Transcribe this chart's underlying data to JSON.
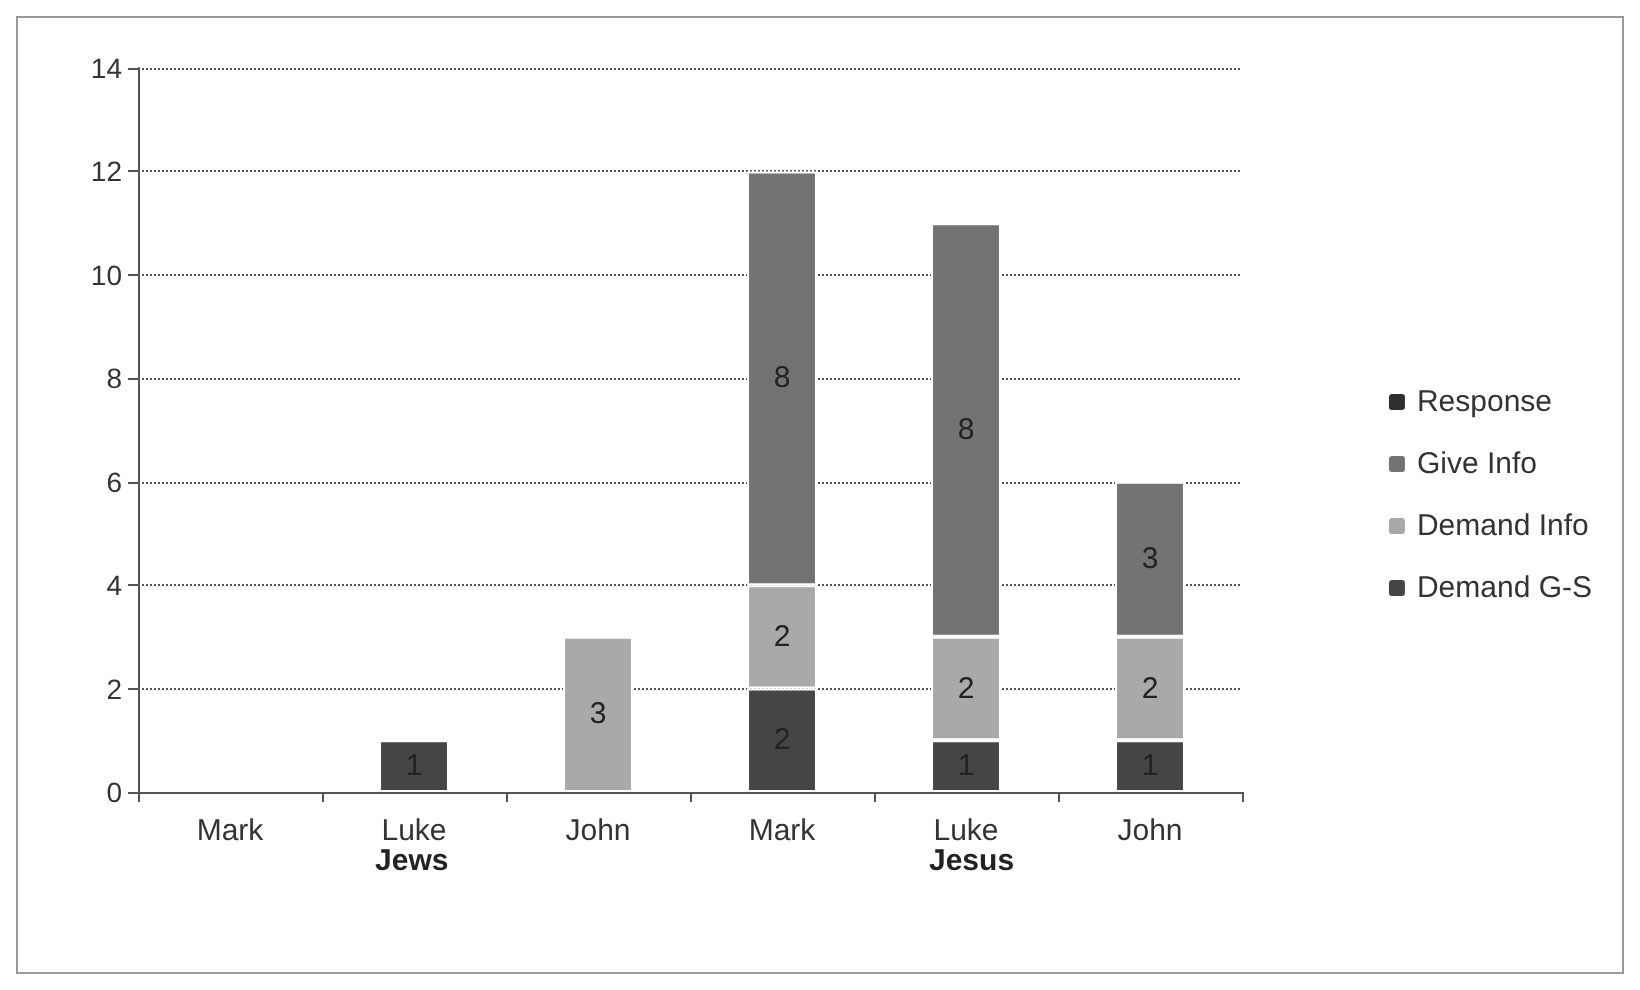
{
  "chart_data": {
    "type": "bar",
    "stacked": true,
    "categories": [
      "Mark",
      "Luke",
      "John",
      "Mark",
      "Luke",
      "John"
    ],
    "series": [
      {
        "name": "Demand G-S",
        "color": "#454545",
        "values": [
          null,
          1,
          null,
          2,
          1,
          1
        ]
      },
      {
        "name": "Demand Info",
        "color": "#a9a9a9",
        "values": [
          null,
          null,
          3,
          2,
          2,
          2
        ]
      },
      {
        "name": "Give Info",
        "color": "#737373",
        "values": [
          null,
          null,
          null,
          8,
          8,
          3
        ]
      },
      {
        "name": "Response",
        "color": "#2f2f2f",
        "values": [
          null,
          null,
          null,
          null,
          null,
          null
        ]
      }
    ],
    "annotations": [
      "Jews",
      "Jesus"
    ],
    "ylim": [
      0,
      14
    ],
    "yticks": [
      0,
      2,
      4,
      6,
      8,
      10,
      12,
      14
    ],
    "grid": "y",
    "legend": "right",
    "data_labels": true
  }
}
